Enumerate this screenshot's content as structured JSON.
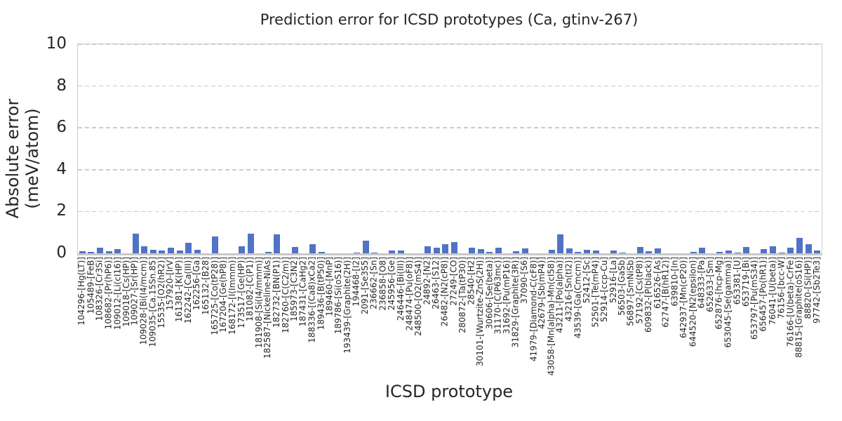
{
  "figure": {
    "title": "Prediction error for ICSD prototypes (Ca, gtinv-267)",
    "xlabel": "ICSD prototype",
    "ylabel": "Absolute error (meV/atom)"
  },
  "chart_data": {
    "type": "bar",
    "title": "Prediction error for ICSD prototypes (Ca, gtinv-267)",
    "xlabel": "ICSD prototype",
    "ylabel": "Absolute error (meV/atom)",
    "ylim": [
      0,
      10
    ],
    "yticks": [
      0,
      2,
      4,
      6,
      8,
      10
    ],
    "grid": "horizontal dashed gridlines at y ticks",
    "legend": "none",
    "bar_color": "#5173c6",
    "axis_color": "#cccccc",
    "text_color": "#262626",
    "categories": [
      "104296-[Hg(LT)]",
      "105489-[FeB]",
      "108326-[Cr3Si]",
      "108682-[Pr(hP6)]",
      "109012-[Li(cI16)]",
      "109018-[Cs(HP)]",
      "109027-[Sr(HP)]",
      "109028-[Bi(I4/mcm)]",
      "109035-[Ca.15Sn.85]",
      "15535-[O2(hR2)]",
      "157920-[IrV]",
      "161381-[K(HP)]",
      "162242-[Ca(III)]",
      "162256-[Ga]",
      "165132-[B28]",
      "165725-[Co(tP28)]",
      "167204-[Ge(hP8)]",
      "168172-[I(Immm)]",
      "173517-[Ge(HP)]",
      "181082-[C(P1)]",
      "181908-[Si(I4/mmm)]",
      "182587-[Nickeline-NiAs]",
      "182732-[BN(P1)]",
      "182760-[C(C2/m)]",
      "185973-[C3N2]",
      "187431-[CaHg2]",
      "188336-[(Ca8)xCa2]",
      "189436-[B(tP50)]",
      "189460-[MnP]",
      "189786-[Si(oS16)]",
      "193439-[Graphite(2H)]",
      "194468-[I2]",
      "2091-[Se3S5]",
      "236662-[Sn]",
      "236858-[O8]",
      "245956-[Ge]",
      "246446-[Bi(III)]",
      "248474-[Pu(oF8)]",
      "248500-[O2(mS4)]",
      "24892-[N2]",
      "26463-[S12]",
      "26482-[N2(cP8)]",
      "27249-[CO]",
      "280872-[Ta(tP30)]",
      "28540-[H2]",
      "30101-[Wurtzite-ZnS(2H)]",
      "30606-[Se(beta)]",
      "31170-[C(P63mc)]",
      "31692-[Pu(mP16)]",
      "31829-[Graphite(3R)]",
      "37090-[S6]",
      "41979-[Diamond-C(cF8)]",
      "42679-[Sb(mP4)]",
      "43058-[Mn(alpha)-Mn(cI58)]",
      "43211-[Po(alpha)]",
      "43216-[Sn(tI2)]",
      "43539-[Ga(Cmcm)]",
      "52412-[Sc]",
      "52501-[Te(mP4)]",
      "52914-[ccp-Cu]",
      "52916-[La]",
      "56503-[GaSb]",
      "56897-[SmNiSb]",
      "57192-[Cs(tP8)]",
      "609832-[P(black)]",
      "616526-[As]",
      "62747-[B(hR12)]",
      "639810-[In]",
      "642937-[Mn(cP20)]",
      "644520-[N2(epsilon)]",
      "648333-[Pa]",
      "652633-[Sm]",
      "652876-[hcp-Mg]",
      "653045-[Se(gamma)]",
      "653381-[U]",
      "653719-[Bi]",
      "653797-[Pu(mS34)]",
      "656457-[Po(hR1)]",
      "76041-[U(beta)]",
      "76156-[bcc-W]",
      "76166-[U(beta)-CrFe]",
      "88815-[Graphite(oS16)]",
      "88820-[Si(HP)]",
      "97742-[Sb2Te3]"
    ],
    "values": [
      0.11,
      0.07,
      0.27,
      0.09,
      0.2,
      0.0,
      0.94,
      0.32,
      0.17,
      0.14,
      0.26,
      0.14,
      0.5,
      0.17,
      0.0,
      0.81,
      0.0,
      0.0,
      0.35,
      0.93,
      0.0,
      0.08,
      0.9,
      0.0,
      0.29,
      0.0,
      0.42,
      0.08,
      0.0,
      0.0,
      0.0,
      0.05,
      0.59,
      0.04,
      0.0,
      0.13,
      0.15,
      0.0,
      0.0,
      0.32,
      0.27,
      0.45,
      0.53,
      0.0,
      0.26,
      0.19,
      0.07,
      0.28,
      0.0,
      0.09,
      0.24,
      0.0,
      0.0,
      0.18,
      0.92,
      0.24,
      0.08,
      0.16,
      0.12,
      0.0,
      0.12,
      0.04,
      0.0,
      0.3,
      0.1,
      0.23,
      0.0,
      0.0,
      0.0,
      0.06,
      0.27,
      0.0,
      0.07,
      0.13,
      0.05,
      0.3,
      0.0,
      0.21,
      0.34,
      0.03,
      0.28,
      0.73,
      0.44,
      0.12
    ]
  }
}
